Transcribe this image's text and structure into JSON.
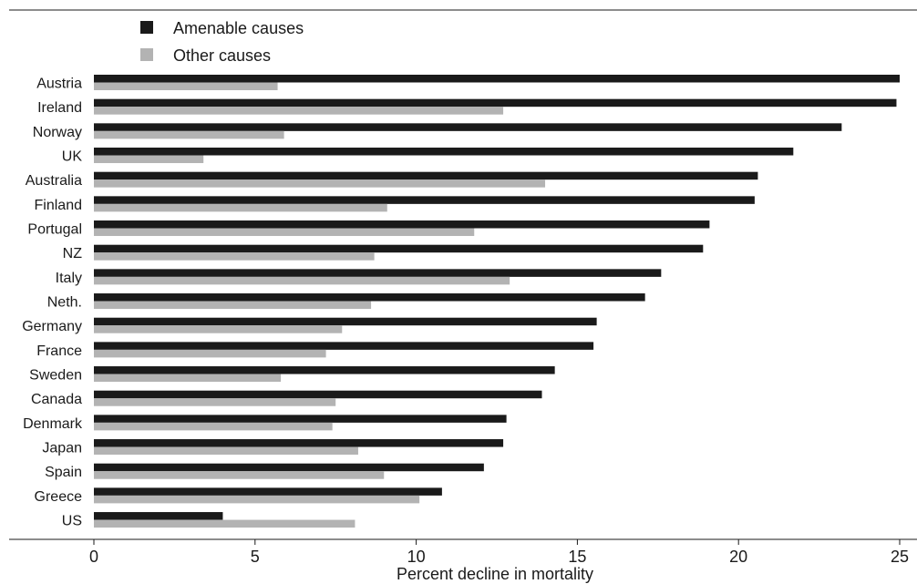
{
  "chart_data": {
    "type": "bar",
    "orientation": "horizontal",
    "categories": [
      "Austria",
      "Ireland",
      "Norway",
      "UK",
      "Australia",
      "Finland",
      "Portugal",
      "NZ",
      "Italy",
      "Neth.",
      "Germany",
      "France",
      "Sweden",
      "Canada",
      "Denmark",
      "Japan",
      "Spain",
      "Greece",
      "US"
    ],
    "series": [
      {
        "name": "Amenable causes",
        "color": "#1a1a1a",
        "values": [
          25.0,
          24.9,
          23.2,
          21.7,
          20.6,
          20.5,
          19.1,
          18.9,
          17.6,
          17.1,
          15.6,
          15.5,
          14.3,
          13.9,
          12.8,
          12.7,
          12.1,
          10.8,
          4.0
        ]
      },
      {
        "name": "Other causes",
        "color": "#b3b3b3",
        "values": [
          5.7,
          12.7,
          5.9,
          3.4,
          14.0,
          9.1,
          11.8,
          8.7,
          12.9,
          8.6,
          7.7,
          7.2,
          5.8,
          7.5,
          7.4,
          8.2,
          9.0,
          10.1,
          8.1
        ]
      }
    ],
    "xlabel": "Percent decline in mortality",
    "xlim": [
      0,
      25
    ],
    "xticks": [
      0,
      5,
      10,
      15,
      20,
      25
    ],
    "grid": false,
    "legend_position": "top-left"
  }
}
